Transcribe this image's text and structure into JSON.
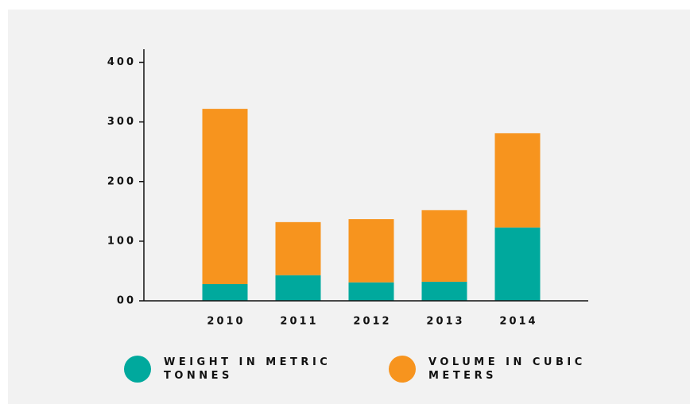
{
  "chart_data": {
    "type": "stacked_bar",
    "categories": [
      "2010",
      "2011",
      "2012",
      "2013",
      "2014"
    ],
    "series": [
      {
        "name": "WEIGHT IN METRIC TONNES",
        "color": "#00a99d",
        "values": [
          28,
          43,
          31,
          32,
          123
        ]
      },
      {
        "name": "VOLUME IN CUBIC METERS",
        "color": "#f7941e",
        "values": [
          294,
          89,
          106,
          120,
          158
        ]
      }
    ],
    "ylim": [
      0,
      422
    ],
    "yticks": [
      {
        "value": 0,
        "label": "00"
      },
      100,
      200,
      300,
      400
    ]
  }
}
